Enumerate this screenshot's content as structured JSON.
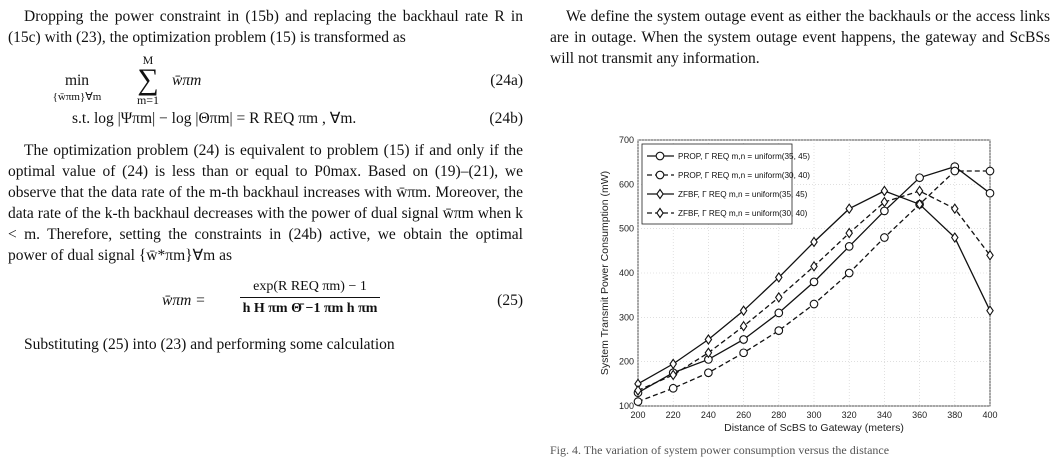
{
  "left": {
    "para1": "Dropping the power constraint in (15b) and replacing the backhaul rate R in (15c) with (23), the optimization problem (15) is transformed as",
    "eq24a": {
      "op": "min",
      "sub": "{w̄πm}∀m",
      "sum_top": "M",
      "sum_bottom": "m=1",
      "body": "w̄πm",
      "num": "(24a)"
    },
    "eq24b": {
      "text": "s.t. log |Ψπm| − log |Θπm| = R REQ πm , ∀m.",
      "num": "(24b)"
    },
    "para2": "The optimization problem (24) is equivalent to problem (15) if and only if the optimal value of (24) is less than or equal to P0max. Based on (19)–(21), we observe that the data rate of the m-th backhaul increases with w̄πm. Moreover, the data rate of the k-th backhaul decreases with the power of dual signal w̄πm when k < m. Therefore, setting the constraints in (24b) active, we obtain the optimal power of dual signal {w̄*πm}∀m as",
    "eq25": {
      "lhs": "w̄πm =",
      "num_expr": "exp(R REQ πm) − 1",
      "den_expr": "h H πm Θ̄ −1 πm h πm",
      "num": "(25)"
    },
    "para3": "Substituting (25) into (23) and performing some calculation"
  },
  "right": {
    "para1": "We define the system outage event as either the backhauls or the access links are in outage. When the system outage event happens, the gateway and ScBSs will not transmit any information.",
    "caption": "Fig. 4. The variation of system power consumption versus the distance"
  },
  "chart_data": {
    "type": "line",
    "xlabel": "Distance of ScBS to Gateway (meters)",
    "ylabel": "System Transmit Power Consumption (mW)",
    "xlim": [
      200,
      400
    ],
    "ylim": [
      100,
      700
    ],
    "x_ticks": [
      200,
      220,
      240,
      260,
      280,
      300,
      320,
      340,
      360,
      380,
      400
    ],
    "y_ticks": [
      100,
      200,
      300,
      400,
      500,
      600,
      700
    ],
    "grid": true,
    "legend_position": "top-left",
    "x": [
      200,
      220,
      240,
      260,
      280,
      300,
      320,
      340,
      360,
      380,
      400
    ],
    "series": [
      {
        "name": "PROP, Γ REQ m,n = uniform(35, 45)",
        "marker": "circle",
        "dash": "solid",
        "values": [
          130,
          175,
          205,
          250,
          310,
          380,
          460,
          540,
          615,
          640,
          580
        ]
      },
      {
        "name": "PROP, Γ REQ m,n = uniform(30, 40)",
        "marker": "circle",
        "dash": "dashed",
        "values": [
          110,
          140,
          175,
          220,
          270,
          330,
          400,
          480,
          555,
          630,
          630
        ]
      },
      {
        "name": "ZFBF, Γ REQ m,n = uniform(35, 45)",
        "marker": "diamond",
        "dash": "solid",
        "values": [
          150,
          195,
          250,
          315,
          390,
          470,
          545,
          585,
          555,
          480,
          315
        ]
      },
      {
        "name": "ZFBF, Γ REQ m,n = uniform(30, 40)",
        "marker": "diamond",
        "dash": "dashed",
        "values": [
          135,
          170,
          220,
          280,
          345,
          415,
          490,
          560,
          585,
          545,
          440
        ]
      }
    ]
  }
}
